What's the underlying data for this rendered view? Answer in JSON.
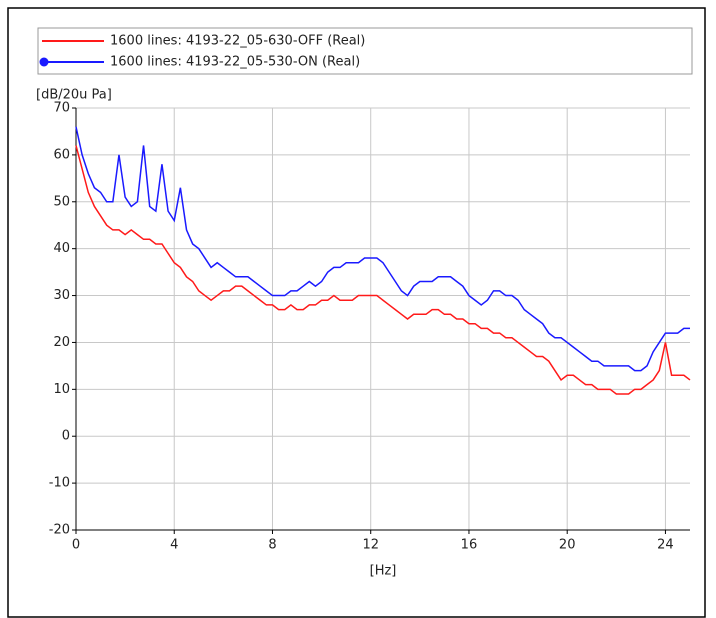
{
  "chart_data": {
    "type": "line",
    "y_label": "[dB/20u Pa]",
    "x_label": "[Hz]",
    "xlim": [
      0,
      25
    ],
    "ylim": [
      -20,
      70
    ],
    "xticks": [
      0,
      4,
      8,
      12,
      16,
      20,
      24
    ],
    "yticks": [
      -20,
      -10,
      0,
      10,
      20,
      30,
      40,
      50,
      60,
      70
    ],
    "grid": true,
    "legend": "top",
    "x": [
      0,
      0.25,
      0.5,
      0.75,
      1,
      1.25,
      1.5,
      1.75,
      2,
      2.25,
      2.5,
      2.75,
      3,
      3.25,
      3.5,
      3.75,
      4,
      4.25,
      4.5,
      4.75,
      5,
      5.25,
      5.5,
      5.75,
      6,
      6.25,
      6.5,
      6.75,
      7,
      7.25,
      7.5,
      7.75,
      8,
      8.25,
      8.5,
      8.75,
      9,
      9.25,
      9.5,
      9.75,
      10,
      10.25,
      10.5,
      10.75,
      11,
      11.25,
      11.5,
      11.75,
      12,
      12.25,
      12.5,
      12.75,
      13,
      13.25,
      13.5,
      13.75,
      14,
      14.25,
      14.5,
      14.75,
      15,
      15.25,
      15.5,
      15.75,
      16,
      16.25,
      16.5,
      16.75,
      17,
      17.25,
      17.5,
      17.75,
      18,
      18.25,
      18.5,
      18.75,
      19,
      19.25,
      19.5,
      19.75,
      20,
      20.25,
      20.5,
      20.75,
      21,
      21.25,
      21.5,
      21.75,
      22,
      22.25,
      22.5,
      22.75,
      23,
      23.25,
      23.5,
      23.75,
      24,
      24.25,
      24.5,
      24.75,
      25
    ],
    "series": [
      {
        "name": "1600 lines: 4193-22_05-630-OFF (Real)",
        "color": "#ff1a1a",
        "marker": "none",
        "values": [
          62,
          57,
          52,
          49,
          47,
          45,
          44,
          44,
          43,
          44,
          43,
          42,
          42,
          41,
          41,
          39,
          37,
          36,
          34,
          33,
          31,
          30,
          29,
          30,
          31,
          31,
          32,
          32,
          31,
          30,
          29,
          28,
          28,
          27,
          27,
          28,
          27,
          27,
          28,
          28,
          29,
          29,
          30,
          29,
          29,
          29,
          30,
          30,
          30,
          30,
          29,
          28,
          27,
          26,
          25,
          26,
          26,
          26,
          27,
          27,
          26,
          26,
          25,
          25,
          24,
          24,
          23,
          23,
          22,
          22,
          21,
          21,
          20,
          19,
          18,
          17,
          17,
          16,
          14,
          12,
          13,
          13,
          12,
          11,
          11,
          10,
          10,
          10,
          9,
          9,
          9,
          10,
          10,
          11,
          12,
          14,
          20,
          13,
          13,
          13,
          12
        ]
      },
      {
        "name": "1600 lines: 4193-22_05-530-ON (Real)",
        "color": "#1a1aff",
        "marker": "circle",
        "values": [
          66,
          60,
          56,
          53,
          52,
          50,
          50,
          60,
          51,
          49,
          50,
          62,
          49,
          48,
          58,
          48,
          46,
          53,
          44,
          41,
          40,
          38,
          36,
          37,
          36,
          35,
          34,
          34,
          34,
          33,
          32,
          31,
          30,
          30,
          30,
          31,
          31,
          32,
          33,
          32,
          33,
          35,
          36,
          36,
          37,
          37,
          37,
          38,
          38,
          38,
          37,
          35,
          33,
          31,
          30,
          32,
          33,
          33,
          33,
          34,
          34,
          34,
          33,
          32,
          30,
          29,
          28,
          29,
          31,
          31,
          30,
          30,
          29,
          27,
          26,
          25,
          24,
          22,
          21,
          21,
          20,
          19,
          18,
          17,
          16,
          16,
          15,
          15,
          15,
          15,
          15,
          14,
          14,
          15,
          18,
          20,
          22,
          22,
          22,
          23,
          23
        ]
      }
    ]
  }
}
